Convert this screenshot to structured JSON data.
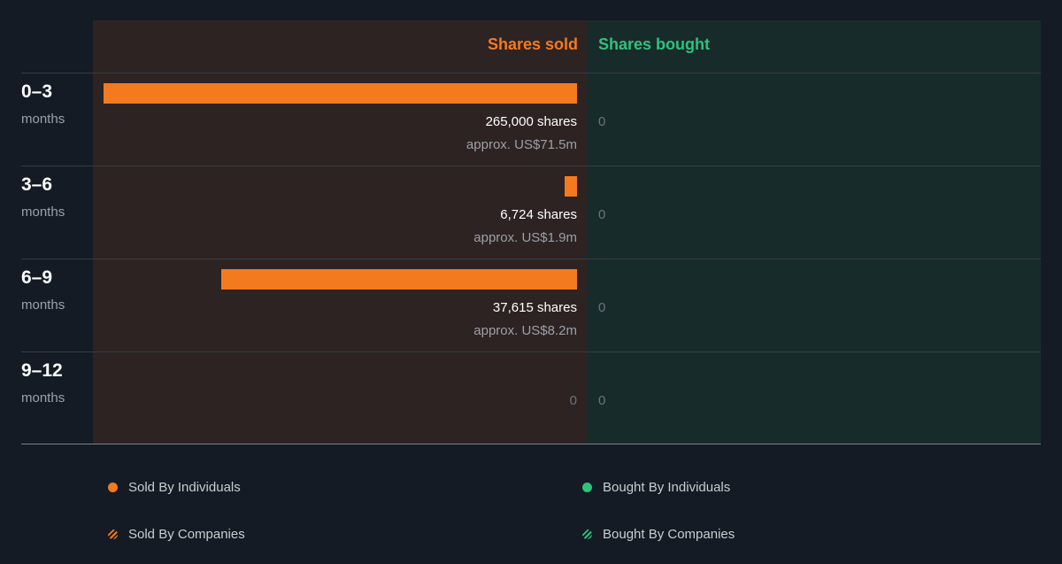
{
  "colors": {
    "sold": "#f47a20",
    "bought": "#2fc27a",
    "background": "#151b24"
  },
  "headers": {
    "sold": "Shares sold",
    "bought": "Shares bought"
  },
  "chart_data": {
    "type": "bar",
    "orientation": "horizontal-diverging",
    "categories": [
      "0–3 months",
      "3–6 months",
      "6–9 months",
      "9–12 months"
    ],
    "series": [
      {
        "name": "Shares sold",
        "values": [
          265000,
          6724,
          37615,
          0
        ]
      },
      {
        "name": "Shares bought",
        "values": [
          0,
          0,
          0,
          0
        ]
      }
    ]
  },
  "rows": [
    {
      "period": "0–3",
      "unit": "months",
      "shares_label": "265,000 shares",
      "approx_label": "approx. US$71.5m",
      "sold_zero": "",
      "bought_label": "0"
    },
    {
      "period": "3–6",
      "unit": "months",
      "shares_label": "6,724 shares",
      "approx_label": "approx. US$1.9m",
      "sold_zero": "",
      "bought_label": "0"
    },
    {
      "period": "6–9",
      "unit": "months",
      "shares_label": "37,615 shares",
      "approx_label": "approx. US$8.2m",
      "sold_zero": "",
      "bought_label": "0"
    },
    {
      "period": "9–12",
      "unit": "months",
      "shares_label": "",
      "approx_label": "",
      "sold_zero": "0",
      "bought_label": "0"
    }
  ],
  "legend": [
    {
      "label": "Sold By Individuals",
      "icon": "dot-icon",
      "color": "#f47a20"
    },
    {
      "label": "Bought By Individuals",
      "icon": "dot-icon",
      "color": "#2fc27a"
    },
    {
      "label": "Sold By Companies",
      "icon": "hatched-dot-icon",
      "color": "#f47a20"
    },
    {
      "label": "Bought By Companies",
      "icon": "hatched-dot-icon",
      "color": "#2fc27a"
    }
  ]
}
